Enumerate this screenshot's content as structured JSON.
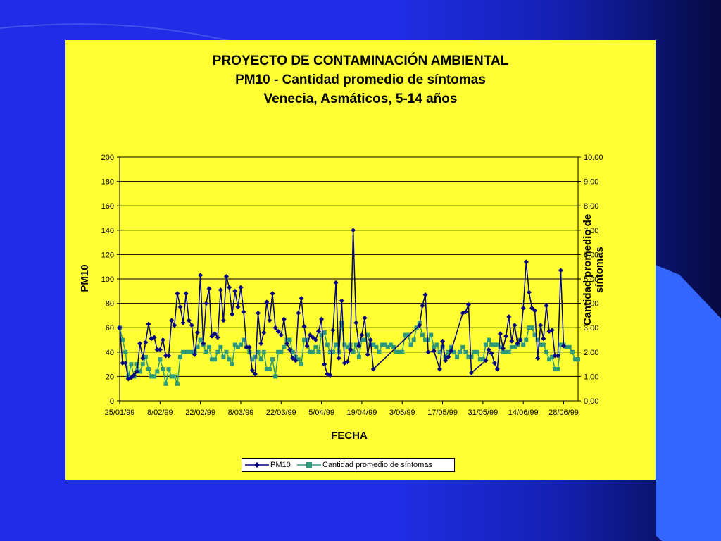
{
  "colors": {
    "background": "#1f2ee6",
    "panel": "#ffff33",
    "pm10_series": "#000080",
    "symptoms_series": "#2e9a7a",
    "accent_shape": "#3366ff"
  },
  "chart_data": {
    "type": "line",
    "title": "PROYECTO DE CONTAMINACIÓN AMBIENTAL",
    "subtitle_lines": [
      "PM10 - Cantidad promedio de síntomas",
      "Venecia, Asmáticos, 5-14 años"
    ],
    "xlabel": "FECHA",
    "ylabel": "PM10",
    "y2label_lines": [
      "Cantidad promedio de",
      "síntomas"
    ],
    "ylim": [
      0,
      200
    ],
    "y2lim": [
      0,
      10
    ],
    "yticks": [
      "0",
      "20",
      "40",
      "60",
      "80",
      "100",
      "120",
      "140",
      "160",
      "180",
      "200"
    ],
    "y2ticks": [
      "0.00",
      "1.00",
      "2.00",
      "3.00",
      "4.00",
      "5.00",
      "6.00",
      "7.00",
      "8.00",
      "9.00",
      "10.00"
    ],
    "xticks": [
      "25/01/99",
      "8/02/99",
      "22/02/99",
      "8/03/99",
      "22/03/99",
      "5/04/99",
      "19/04/99",
      "3/05/99",
      "17/05/99",
      "31/05/99",
      "14/06/99",
      "28/06/99"
    ],
    "grid": true,
    "legend": "bottom",
    "series": [
      {
        "name": "PM10",
        "axis": "left",
        "marker": "diamond",
        "points": [
          [
            0,
            60
          ],
          [
            1,
            31
          ],
          [
            2,
            31
          ],
          [
            3,
            18
          ],
          [
            4,
            19
          ],
          [
            5,
            21
          ],
          [
            6,
            24
          ],
          [
            7,
            47
          ],
          [
            8,
            35
          ],
          [
            9,
            48
          ],
          [
            10,
            63
          ],
          [
            11,
            51
          ],
          [
            12,
            52
          ],
          [
            13,
            42
          ],
          [
            14,
            42
          ],
          [
            15,
            50
          ],
          [
            16,
            37
          ],
          [
            17,
            37
          ],
          [
            18,
            66
          ],
          [
            19,
            62
          ],
          [
            20,
            88
          ],
          [
            21,
            77
          ],
          [
            22,
            64
          ],
          [
            23,
            88
          ],
          [
            24,
            66
          ],
          [
            25,
            62
          ],
          [
            26,
            38
          ],
          [
            27,
            56
          ],
          [
            28,
            103
          ],
          [
            29,
            47
          ],
          [
            30,
            80
          ],
          [
            31,
            92
          ],
          [
            32,
            53
          ],
          [
            33,
            55
          ],
          [
            34,
            52
          ],
          [
            35,
            91
          ],
          [
            36,
            66
          ],
          [
            37,
            102
          ],
          [
            38,
            93
          ],
          [
            39,
            71
          ],
          [
            40,
            90
          ],
          [
            41,
            77
          ],
          [
            42,
            93
          ],
          [
            43,
            73
          ],
          [
            44,
            44
          ],
          [
            45,
            44
          ],
          [
            46,
            25
          ],
          [
            47,
            22
          ],
          [
            48,
            72
          ],
          [
            49,
            47
          ],
          [
            50,
            56
          ],
          [
            51,
            81
          ],
          [
            52,
            66
          ],
          [
            53,
            88
          ],
          [
            54,
            60
          ],
          [
            55,
            57
          ],
          [
            56,
            54
          ],
          [
            57,
            67
          ],
          [
            58,
            47
          ],
          [
            59,
            42
          ],
          [
            60,
            35
          ],
          [
            61,
            33
          ],
          [
            62,
            72
          ],
          [
            63,
            84
          ],
          [
            64,
            61
          ],
          [
            65,
            45
          ],
          [
            66,
            54
          ],
          [
            67,
            52
          ],
          [
            68,
            50
          ],
          [
            69,
            57
          ],
          [
            70,
            67
          ],
          [
            71,
            30
          ],
          [
            72,
            22
          ],
          [
            73,
            21
          ],
          [
            74,
            58
          ],
          [
            75,
            97
          ],
          [
            76,
            35
          ],
          [
            77,
            82
          ],
          [
            78,
            31
          ],
          [
            79,
            32
          ],
          [
            80,
            42
          ],
          [
            81,
            140
          ],
          [
            82,
            64
          ],
          [
            83,
            45
          ],
          [
            84,
            54
          ],
          [
            85,
            68
          ],
          [
            86,
            38
          ],
          [
            87,
            50
          ],
          [
            88,
            26
          ],
          [
            104,
            62
          ],
          [
            105,
            78
          ],
          [
            106,
            87
          ],
          [
            107,
            40
          ],
          [
            109,
            41
          ],
          [
            111,
            26
          ],
          [
            112,
            49
          ],
          [
            113,
            33
          ],
          [
            114,
            36
          ],
          [
            115,
            41
          ],
          [
            119,
            72
          ],
          [
            120,
            73
          ],
          [
            121,
            79
          ],
          [
            122,
            23
          ],
          [
            127,
            33
          ],
          [
            128,
            42
          ],
          [
            129,
            39
          ],
          [
            130,
            31
          ],
          [
            131,
            26
          ],
          [
            132,
            55
          ],
          [
            133,
            43
          ],
          [
            134,
            53
          ],
          [
            135,
            69
          ],
          [
            136,
            49
          ],
          [
            137,
            62
          ],
          [
            138,
            47
          ],
          [
            139,
            50
          ],
          [
            140,
            76
          ],
          [
            141,
            114
          ],
          [
            142,
            89
          ],
          [
            143,
            76
          ],
          [
            144,
            74
          ],
          [
            145,
            35
          ],
          [
            146,
            62
          ],
          [
            147,
            51
          ],
          [
            148,
            78
          ],
          [
            149,
            57
          ],
          [
            150,
            58
          ],
          [
            151,
            37
          ],
          [
            152,
            37
          ],
          [
            153,
            107
          ],
          [
            154,
            45
          ]
        ]
      },
      {
        "name": "Cantidad promedio de síntomas",
        "axis": "right",
        "marker": "square",
        "points": [
          [
            0,
            3.0
          ],
          [
            1,
            2.5
          ],
          [
            2,
            2.0
          ],
          [
            3,
            1.0
          ],
          [
            4,
            1.5
          ],
          [
            5,
            1.0
          ],
          [
            6,
            1.5
          ],
          [
            7,
            1.2
          ],
          [
            8,
            1.5
          ],
          [
            9,
            1.8
          ],
          [
            10,
            1.3
          ],
          [
            11,
            1.0
          ],
          [
            12,
            1.0
          ],
          [
            13,
            1.2
          ],
          [
            14,
            1.7
          ],
          [
            15,
            1.3
          ],
          [
            16,
            0.7
          ],
          [
            17,
            1.3
          ],
          [
            18,
            1.0
          ],
          [
            19,
            1.0
          ],
          [
            20,
            0.7
          ],
          [
            21,
            1.8
          ],
          [
            22,
            2.0
          ],
          [
            23,
            2.0
          ],
          [
            24,
            2.0
          ],
          [
            25,
            2.0
          ],
          [
            26,
            2.0
          ],
          [
            27,
            2.2
          ],
          [
            28,
            2.5
          ],
          [
            29,
            2.3
          ],
          [
            30,
            2.0
          ],
          [
            31,
            2.2
          ],
          [
            32,
            1.7
          ],
          [
            33,
            1.7
          ],
          [
            34,
            2.0
          ],
          [
            35,
            2.2
          ],
          [
            36,
            1.8
          ],
          [
            37,
            2.0
          ],
          [
            38,
            1.7
          ],
          [
            39,
            1.5
          ],
          [
            40,
            2.3
          ],
          [
            41,
            2.2
          ],
          [
            42,
            2.3
          ],
          [
            43,
            2.5
          ],
          [
            44,
            2.2
          ],
          [
            45,
            2.0
          ],
          [
            46,
            1.7
          ],
          [
            47,
            1.8
          ],
          [
            48,
            2.0
          ],
          [
            49,
            1.7
          ],
          [
            50,
            2.0
          ],
          [
            51,
            1.3
          ],
          [
            52,
            1.3
          ],
          [
            53,
            1.7
          ],
          [
            54,
            1.0
          ],
          [
            55,
            2.0
          ],
          [
            56,
            2.0
          ],
          [
            57,
            2.2
          ],
          [
            58,
            2.5
          ],
          [
            59,
            2.5
          ],
          [
            60,
            2.0
          ],
          [
            61,
            1.8
          ],
          [
            62,
            1.7
          ],
          [
            63,
            1.5
          ],
          [
            64,
            2.5
          ],
          [
            65,
            2.5
          ],
          [
            66,
            2.0
          ],
          [
            67,
            2.0
          ],
          [
            68,
            2.2
          ],
          [
            69,
            2.0
          ],
          [
            70,
            2.7
          ],
          [
            71,
            2.8
          ],
          [
            72,
            2.3
          ],
          [
            73,
            2.0
          ],
          [
            74,
            2.0
          ],
          [
            75,
            2.3
          ],
          [
            76,
            2.0
          ],
          [
            77,
            3.2
          ],
          [
            78,
            2.3
          ],
          [
            79,
            2.2
          ],
          [
            80,
            2.3
          ],
          [
            81,
            2.0
          ],
          [
            82,
            2.3
          ],
          [
            83,
            1.8
          ],
          [
            84,
            2.5
          ],
          [
            85,
            2.5
          ],
          [
            86,
            2.7
          ],
          [
            87,
            2.3
          ],
          [
            88,
            2.3
          ],
          [
            89,
            2.2
          ],
          [
            90,
            2.0
          ],
          [
            91,
            2.3
          ],
          [
            92,
            2.3
          ],
          [
            93,
            2.2
          ],
          [
            94,
            2.3
          ],
          [
            95,
            2.2
          ],
          [
            96,
            2.0
          ],
          [
            97,
            2.0
          ],
          [
            98,
            2.0
          ],
          [
            99,
            2.7
          ],
          [
            100,
            2.7
          ],
          [
            101,
            2.3
          ],
          [
            102,
            2.5
          ],
          [
            103,
            3.0
          ],
          [
            104,
            3.2
          ],
          [
            105,
            2.7
          ],
          [
            106,
            2.5
          ],
          [
            107,
            2.5
          ],
          [
            108,
            2.7
          ],
          [
            109,
            2.2
          ],
          [
            110,
            2.3
          ],
          [
            111,
            2.0
          ],
          [
            112,
            2.2
          ],
          [
            113,
            1.8
          ],
          [
            114,
            2.0
          ],
          [
            115,
            2.2
          ],
          [
            116,
            2.0
          ],
          [
            117,
            1.8
          ],
          [
            118,
            2.0
          ],
          [
            119,
            2.2
          ],
          [
            120,
            2.0
          ],
          [
            121,
            1.8
          ],
          [
            122,
            1.8
          ],
          [
            123,
            2.0
          ],
          [
            124,
            2.0
          ],
          [
            125,
            1.7
          ],
          [
            126,
            1.7
          ],
          [
            127,
            2.3
          ],
          [
            128,
            2.5
          ],
          [
            129,
            2.3
          ],
          [
            130,
            2.3
          ],
          [
            131,
            2.3
          ],
          [
            132,
            2.2
          ],
          [
            133,
            2.0
          ],
          [
            134,
            2.0
          ],
          [
            135,
            2.0
          ],
          [
            136,
            2.2
          ],
          [
            137,
            2.2
          ],
          [
            138,
            2.3
          ],
          [
            139,
            2.5
          ],
          [
            140,
            2.3
          ],
          [
            141,
            2.5
          ],
          [
            142,
            3.0
          ],
          [
            143,
            3.0
          ],
          [
            144,
            2.7
          ],
          [
            145,
            2.5
          ],
          [
            146,
            2.3
          ],
          [
            147,
            2.3
          ],
          [
            148,
            2.0
          ],
          [
            149,
            1.7
          ],
          [
            150,
            1.8
          ],
          [
            151,
            1.3
          ],
          [
            152,
            1.3
          ],
          [
            153,
            2.3
          ],
          [
            154,
            2.3
          ],
          [
            155,
            2.2
          ],
          [
            156,
            2.2
          ],
          [
            157,
            2.0
          ],
          [
            158,
            1.7
          ],
          [
            159,
            1.7
          ]
        ]
      }
    ]
  }
}
